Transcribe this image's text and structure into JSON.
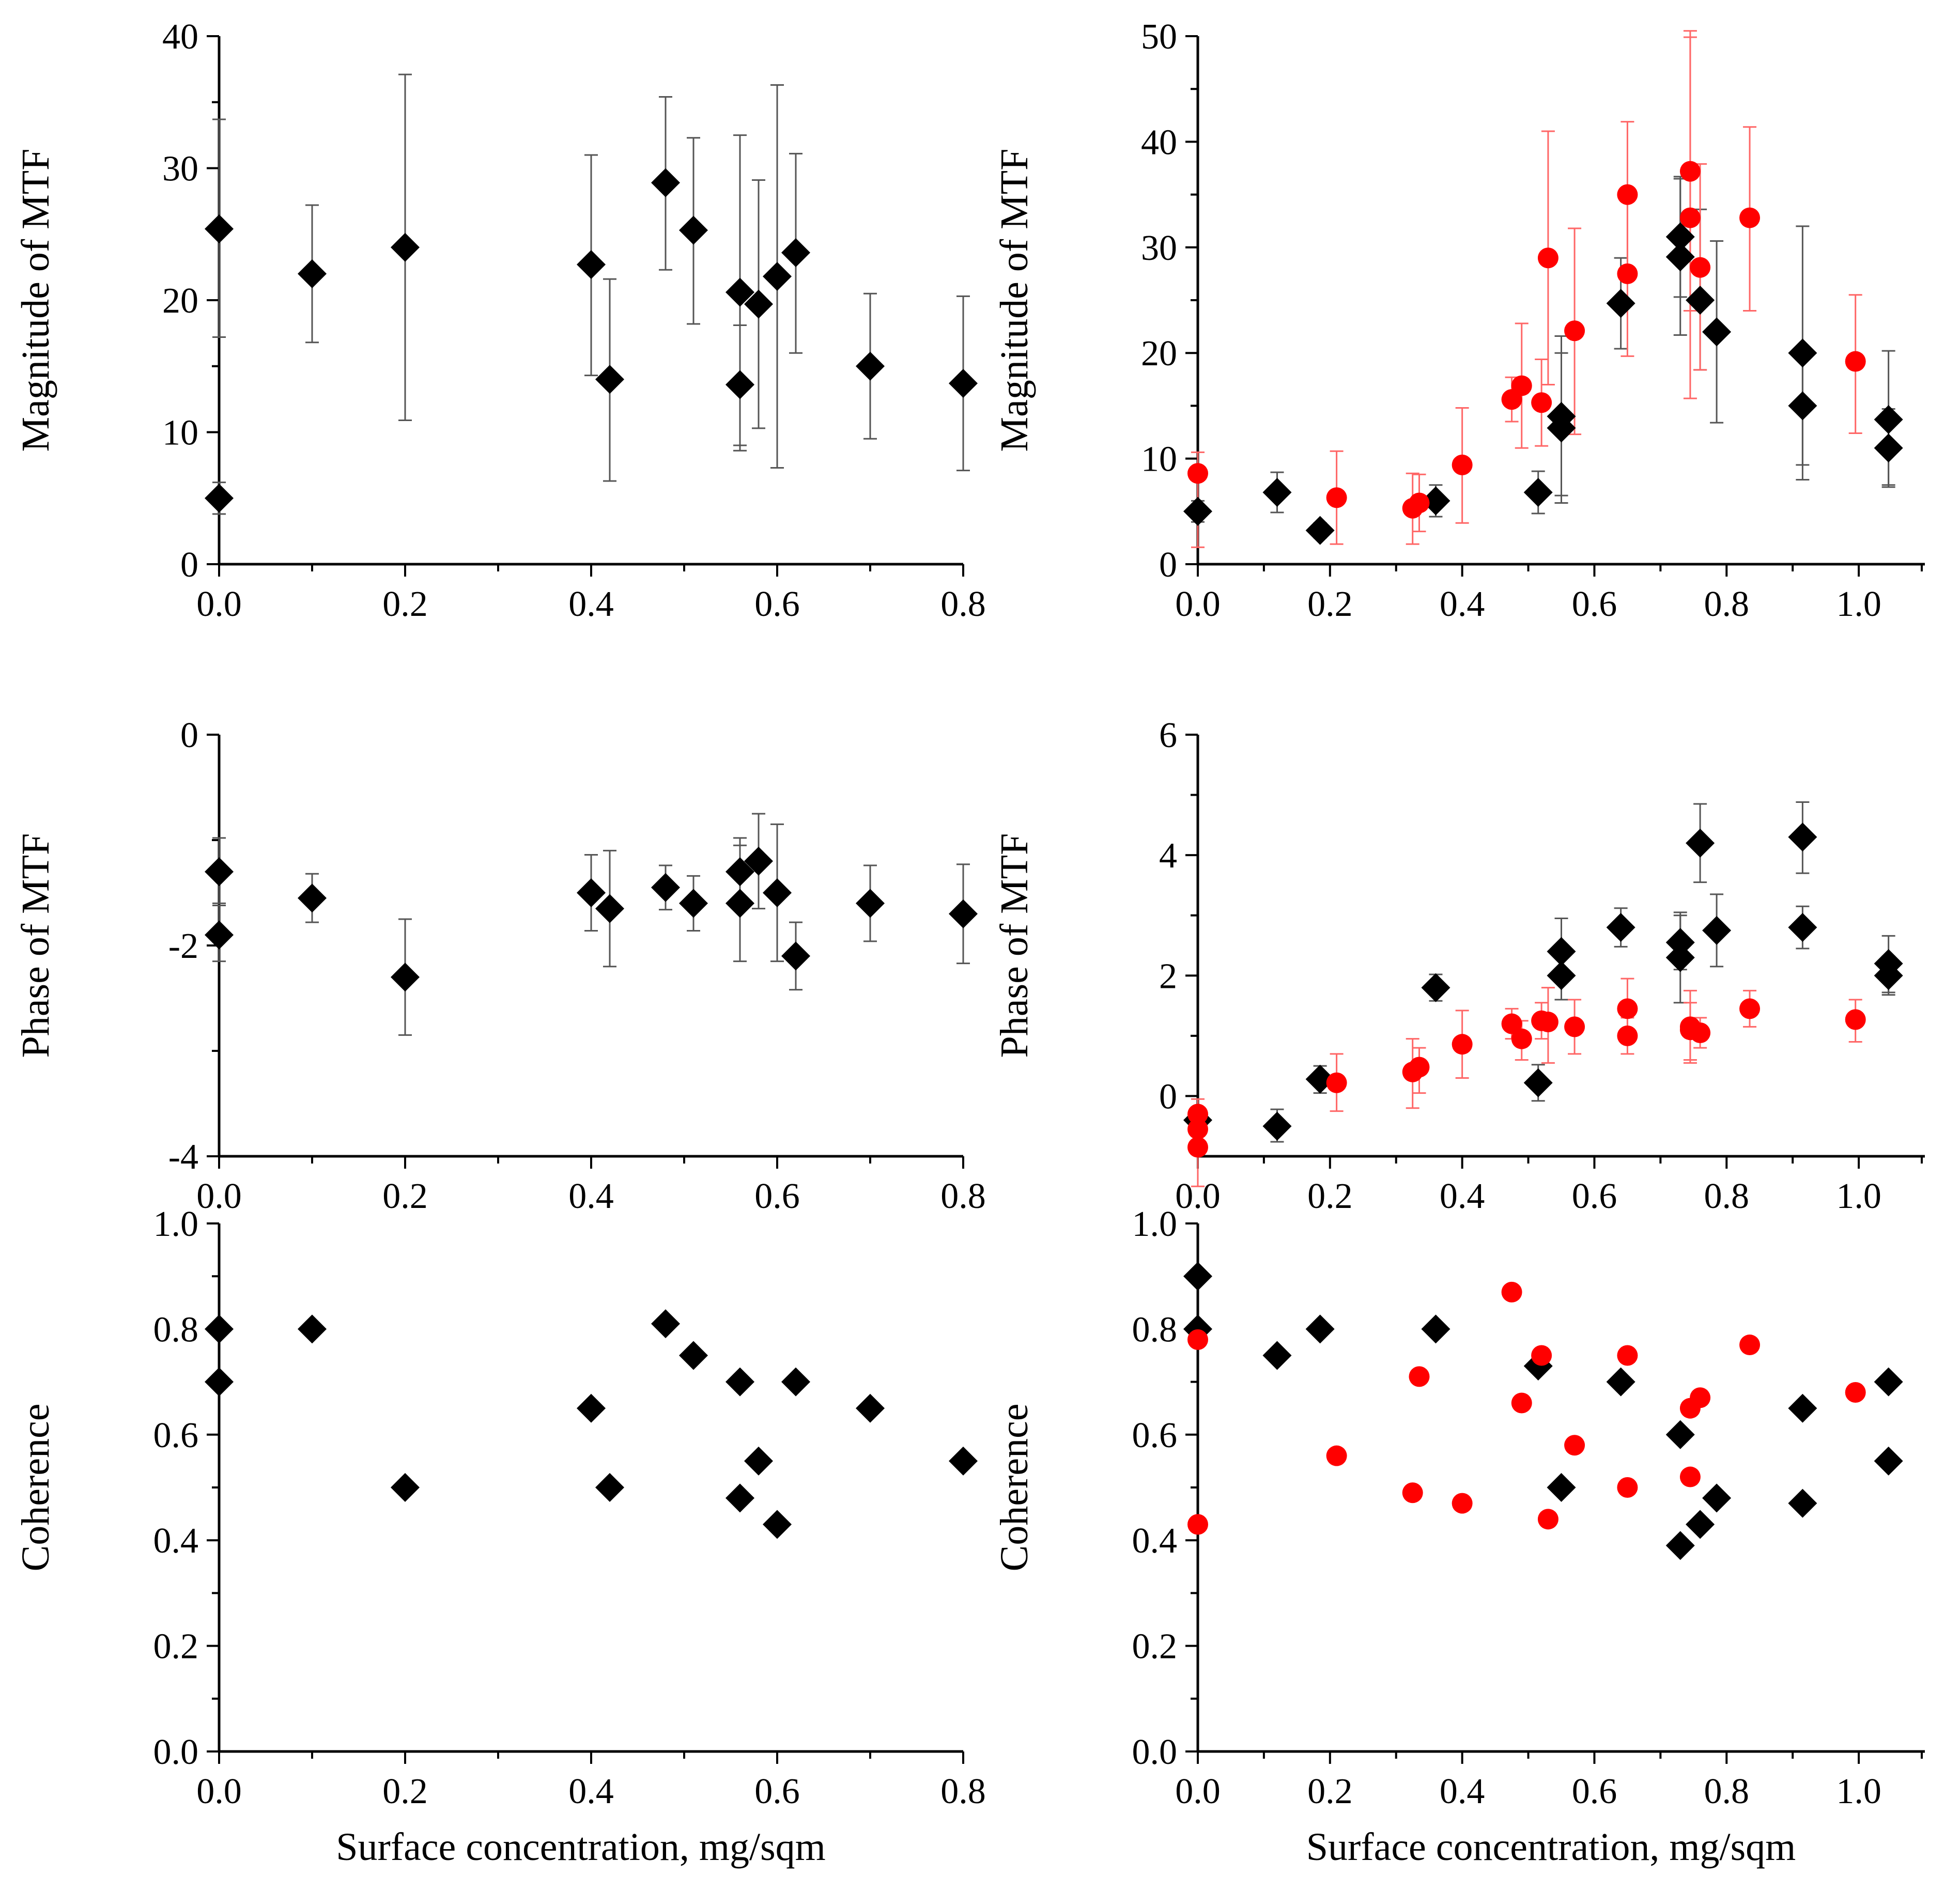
{
  "colors": {
    "black_series": "#000000",
    "red_series": "#ff0000",
    "black_error": "#555555",
    "red_error": "#ff6666"
  },
  "chart_data": [
    {
      "type": "scatter",
      "panel": "top-left",
      "title": "",
      "xlabel": "",
      "ylabel": "Magnitude of MTF",
      "xlim": [
        0,
        0.8
      ],
      "ylim": [
        0,
        40
      ],
      "xticks": [
        0,
        0.2,
        0.4,
        0.6,
        0.8
      ],
      "xtick_labels": [
        "0.0",
        "0.2",
        "0.4",
        "0.6",
        "0.8"
      ],
      "yticks": [
        0,
        10,
        20,
        30,
        40
      ],
      "ytick_labels": [
        "0",
        "10",
        "20",
        "30",
        "40"
      ],
      "series": [
        {
          "name": "black",
          "marker": "diamond",
          "color": "#000000",
          "x": [
            0.0,
            0.0,
            0.1,
            0.2,
            0.4,
            0.42,
            0.48,
            0.51,
            0.56,
            0.56,
            0.58,
            0.6,
            0.62,
            0.7,
            0.8
          ],
          "y": [
            25.4,
            5.0,
            22.0,
            24.0,
            22.7,
            14.0,
            28.9,
            25.3,
            20.6,
            13.6,
            19.7,
            21.8,
            23.6,
            15.0,
            13.7
          ],
          "err_low": [
            17.2,
            3.8,
            16.8,
            10.9,
            14.3,
            6.3,
            22.3,
            18.2,
            8.6,
            9.0,
            10.3,
            7.3,
            16.0,
            9.5,
            7.1
          ],
          "err_high": [
            33.7,
            6.2,
            27.2,
            37.1,
            31.0,
            21.6,
            35.4,
            32.3,
            32.5,
            18.1,
            29.1,
            36.3,
            31.1,
            20.5,
            20.3
          ]
        }
      ]
    },
    {
      "type": "scatter",
      "panel": "top-right",
      "title": "",
      "xlabel": "",
      "ylabel": "Magnitude of MTF",
      "xlim": [
        0,
        1.1
      ],
      "ylim": [
        0,
        50
      ],
      "xticks": [
        0,
        0.2,
        0.4,
        0.6,
        0.8,
        1.0
      ],
      "xtick_labels": [
        "0.0",
        "0.2",
        "0.4",
        "0.6",
        "0.8",
        "1.0"
      ],
      "yticks": [
        0,
        10,
        20,
        30,
        40,
        50
      ],
      "ytick_labels": [
        "0",
        "10",
        "20",
        "30",
        "40",
        "50"
      ],
      "series": [
        {
          "name": "black",
          "marker": "diamond",
          "color": "#000000",
          "x": [
            0.0,
            0.12,
            0.185,
            0.36,
            0.515,
            0.55,
            0.55,
            0.64,
            0.73,
            0.73,
            0.76,
            0.785,
            0.915,
            0.915,
            1.045,
            1.045
          ],
          "y": [
            5.0,
            6.8,
            3.2,
            6.0,
            6.8,
            14.0,
            12.9,
            24.7,
            31.0,
            29.1,
            25.0,
            22.0,
            20.0,
            15.0,
            13.7,
            11.0
          ],
          "err_low": [
            4.0,
            4.9,
            2.5,
            4.5,
            4.8,
            6.5,
            5.8,
            20.4,
            25.3,
            21.7,
            18.4,
            13.4,
            8.0,
            9.4,
            7.5,
            7.3
          ],
          "err_high": [
            6.0,
            8.7,
            3.9,
            7.5,
            8.8,
            21.6,
            20.0,
            29.0,
            36.7,
            36.5,
            33.6,
            30.6,
            32.0,
            20.6,
            20.2,
            14.7
          ]
        },
        {
          "name": "red",
          "marker": "circle",
          "color": "#ff0000",
          "x": [
            0.0,
            0.21,
            0.325,
            0.335,
            0.4,
            0.475,
            0.49,
            0.52,
            0.53,
            0.57,
            0.65,
            0.65,
            0.745,
            0.745,
            0.76,
            0.835,
            0.995
          ],
          "y": [
            8.6,
            6.3,
            5.3,
            5.8,
            9.4,
            15.6,
            16.9,
            15.3,
            29.0,
            22.1,
            35.0,
            27.5,
            37.2,
            32.8,
            28.1,
            32.8,
            19.2
          ],
          "err_low": [
            1.6,
            1.9,
            1.9,
            3.1,
            3.9,
            13.5,
            11.0,
            11.2,
            17.0,
            12.3,
            28.1,
            19.7,
            24.0,
            15.7,
            18.4,
            24.0,
            12.4
          ],
          "err_high": [
            10.6,
            10.7,
            8.6,
            8.5,
            14.8,
            17.7,
            22.8,
            19.4,
            41.0,
            31.8,
            41.9,
            35.2,
            50.5,
            49.9,
            37.9,
            41.4,
            25.5
          ]
        }
      ]
    },
    {
      "type": "scatter",
      "panel": "middle-left",
      "title": "",
      "xlabel": "",
      "ylabel": "Phase of MTF",
      "xlim": [
        0,
        0.8
      ],
      "ylim": [
        -4,
        0
      ],
      "xticks": [
        0,
        0.2,
        0.4,
        0.6,
        0.8
      ],
      "xtick_labels": [
        "0.0",
        "0.2",
        "0.4",
        "0.6",
        "0.8"
      ],
      "yticks": [
        -4,
        -2,
        0
      ],
      "ytick_labels": [
        "-4",
        "-2",
        "0"
      ],
      "series": [
        {
          "name": "black",
          "marker": "diamond",
          "color": "#000000",
          "x": [
            0.0,
            0.0,
            0.1,
            0.2,
            0.4,
            0.42,
            0.48,
            0.51,
            0.56,
            0.56,
            0.58,
            0.6,
            0.62,
            0.7,
            0.8
          ],
          "y": [
            -1.3,
            -1.9,
            -1.55,
            -2.3,
            -1.5,
            -1.65,
            -1.45,
            -1.6,
            -1.3,
            -1.6,
            -1.2,
            -1.5,
            -2.1,
            -1.6,
            -1.7
          ],
          "err_low": [
            -1.6,
            -2.15,
            -1.78,
            -2.85,
            -1.86,
            -2.2,
            -1.66,
            -1.86,
            -1.62,
            -2.15,
            -1.65,
            -2.15,
            -2.42,
            -1.96,
            -2.17
          ],
          "err_high": [
            -0.98,
            -1.62,
            -1.32,
            -1.75,
            -1.14,
            -1.1,
            -1.24,
            -1.34,
            -0.98,
            -1.05,
            -0.75,
            -0.85,
            -1.78,
            -1.24,
            -1.23
          ]
        }
      ]
    },
    {
      "type": "scatter",
      "panel": "middle-right",
      "title": "",
      "xlabel": "",
      "ylabel": "Phase of MTF",
      "xlim": [
        0,
        1.1
      ],
      "ylim": [
        -1,
        6
      ],
      "xticks": [
        0,
        0.2,
        0.4,
        0.6,
        0.8,
        1.0
      ],
      "xtick_labels": [
        "0.0",
        "0.2",
        "0.4",
        "0.6",
        "0.8",
        "1.0"
      ],
      "yticks": [
        0,
        2,
        4,
        6
      ],
      "ytick_labels": [
        "0",
        "2",
        "4",
        "6"
      ],
      "series": [
        {
          "name": "black",
          "marker": "diamond",
          "color": "#000000",
          "x": [
            0.0,
            0.12,
            0.185,
            0.36,
            0.515,
            0.55,
            0.55,
            0.64,
            0.73,
            0.73,
            0.76,
            0.785,
            0.915,
            0.915,
            1.045,
            1.045
          ],
          "y": [
            -0.4,
            -0.5,
            0.28,
            1.8,
            0.22,
            2.4,
            2.0,
            2.8,
            2.55,
            2.3,
            4.2,
            2.75,
            4.3,
            2.8,
            2.2,
            2.0
          ],
          "err_low": [
            -0.6,
            -0.76,
            0.05,
            1.58,
            -0.08,
            1.9,
            1.6,
            2.48,
            2.1,
            1.55,
            3.55,
            2.15,
            3.7,
            2.45,
            1.72,
            1.68
          ],
          "err_high": [
            -0.2,
            -0.22,
            0.5,
            2.02,
            0.52,
            2.95,
            2.4,
            3.12,
            3.0,
            3.05,
            4.85,
            3.35,
            4.88,
            3.15,
            2.66,
            2.32
          ]
        },
        {
          "name": "red",
          "marker": "circle",
          "color": "#ff0000",
          "x": [
            0.0,
            0.0,
            0.0,
            0.21,
            0.325,
            0.335,
            0.4,
            0.475,
            0.49,
            0.52,
            0.53,
            0.57,
            0.65,
            0.65,
            0.745,
            0.745,
            0.76,
            0.835,
            0.995
          ],
          "y": [
            -0.3,
            -0.55,
            -0.85,
            0.22,
            0.4,
            0.48,
            0.86,
            1.2,
            0.95,
            1.25,
            1.23,
            1.15,
            1.45,
            1.0,
            1.15,
            1.1,
            1.05,
            1.45,
            1.27
          ],
          "err_low": [
            -0.55,
            -0.8,
            -1.5,
            -0.25,
            -0.2,
            0.05,
            0.3,
            0.95,
            0.6,
            0.95,
            0.55,
            0.7,
            0.9,
            0.7,
            0.55,
            0.6,
            0.8,
            1.15,
            0.9
          ],
          "err_high": [
            -0.05,
            -0.3,
            -0.2,
            0.7,
            0.95,
            0.8,
            1.42,
            1.45,
            1.25,
            1.55,
            1.8,
            1.6,
            1.95,
            1.3,
            1.75,
            1.55,
            1.3,
            1.75,
            1.6
          ]
        }
      ]
    },
    {
      "type": "scatter",
      "panel": "bottom-left",
      "title": "",
      "xlabel": "Surface concentration, mg/sqm",
      "ylabel": "Coherence",
      "xlim": [
        0,
        0.8
      ],
      "ylim": [
        0,
        1.0
      ],
      "xticks": [
        0,
        0.2,
        0.4,
        0.6,
        0.8
      ],
      "xtick_labels": [
        "0.0",
        "0.2",
        "0.4",
        "0.6",
        "0.8"
      ],
      "yticks": [
        0,
        0.2,
        0.4,
        0.6,
        0.8,
        1.0
      ],
      "ytick_labels": [
        "0.0",
        "0.2",
        "0.4",
        "0.6",
        "0.8",
        "1.0"
      ],
      "series": [
        {
          "name": "black",
          "marker": "diamond",
          "color": "#000000",
          "x": [
            0.0,
            0.0,
            0.1,
            0.2,
            0.4,
            0.42,
            0.48,
            0.51,
            0.56,
            0.56,
            0.58,
            0.6,
            0.62,
            0.7,
            0.8
          ],
          "y": [
            0.8,
            0.7,
            0.8,
            0.5,
            0.65,
            0.5,
            0.81,
            0.75,
            0.7,
            0.48,
            0.55,
            0.43,
            0.7,
            0.65,
            0.55
          ]
        }
      ]
    },
    {
      "type": "scatter",
      "panel": "bottom-right",
      "title": "",
      "xlabel": "Surface concentration, mg/sqm",
      "ylabel": "Coherence",
      "xlim": [
        0,
        1.1
      ],
      "ylim": [
        0,
        1.0
      ],
      "xticks": [
        0,
        0.2,
        0.4,
        0.6,
        0.8,
        1.0
      ],
      "xtick_labels": [
        "0.0",
        "0.2",
        "0.4",
        "0.6",
        "0.8",
        "1.0"
      ],
      "yticks": [
        0,
        0.2,
        0.4,
        0.6,
        0.8,
        1.0
      ],
      "ytick_labels": [
        "0.0",
        "0.2",
        "0.4",
        "0.6",
        "0.8",
        "1.0"
      ],
      "series": [
        {
          "name": "black",
          "marker": "diamond",
          "color": "#000000",
          "x": [
            0.0,
            0.0,
            0.12,
            0.185,
            0.36,
            0.515,
            0.55,
            0.64,
            0.73,
            0.73,
            0.76,
            0.785,
            0.915,
            0.915,
            1.045,
            1.045
          ],
          "y": [
            0.9,
            0.8,
            0.75,
            0.8,
            0.8,
            0.73,
            0.5,
            0.7,
            0.6,
            0.39,
            0.43,
            0.48,
            0.65,
            0.47,
            0.7,
            0.55
          ]
        },
        {
          "name": "red",
          "marker": "circle",
          "color": "#ff0000",
          "x": [
            0.0,
            0.0,
            0.21,
            0.325,
            0.335,
            0.4,
            0.475,
            0.49,
            0.52,
            0.53,
            0.57,
            0.65,
            0.65,
            0.745,
            0.745,
            0.76,
            0.835,
            0.995
          ],
          "y": [
            0.78,
            0.43,
            0.56,
            0.49,
            0.71,
            0.47,
            0.87,
            0.66,
            0.75,
            0.44,
            0.58,
            0.75,
            0.5,
            0.65,
            0.52,
            0.67,
            0.77,
            0.68
          ]
        }
      ]
    }
  ]
}
